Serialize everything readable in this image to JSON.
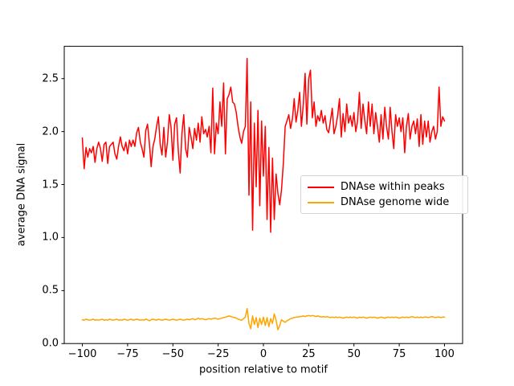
{
  "chart_data": {
    "type": "line",
    "title": "",
    "xlabel": "position relative to motif",
    "ylabel": "average DNA signal",
    "xlim": [
      -110,
      110
    ],
    "ylim": [
      0,
      2.805
    ],
    "grid": false,
    "legend_position": "center-right",
    "background_color": "#ffffff",
    "spine_color": "#000000",
    "xticks": [
      -100,
      -75,
      -50,
      -25,
      0,
      25,
      50,
      75,
      100
    ],
    "xtick_labels": [
      "−100",
      "−75",
      "−50",
      "−25",
      "0",
      "25",
      "50",
      "75",
      "100"
    ],
    "yticks": [
      0,
      0.5,
      1.0,
      1.5,
      2.0,
      2.5
    ],
    "ytick_labels": [
      "0.0",
      "0.5",
      "1.0",
      "1.5",
      "2.0",
      "2.5"
    ],
    "x": [
      -100,
      -99,
      -98,
      -97,
      -96,
      -95,
      -94,
      -93,
      -92,
      -91,
      -90,
      -89,
      -88,
      -87,
      -86,
      -85,
      -84,
      -83,
      -82,
      -81,
      -80,
      -79,
      -78,
      -77,
      -76,
      -75,
      -74,
      -73,
      -72,
      -71,
      -70,
      -69,
      -68,
      -67,
      -66,
      -65,
      -64,
      -63,
      -62,
      -61,
      -60,
      -59,
      -58,
      -57,
      -56,
      -55,
      -54,
      -53,
      -52,
      -51,
      -50,
      -49,
      -48,
      -47,
      -46,
      -45,
      -44,
      -43,
      -42,
      -41,
      -40,
      -39,
      -38,
      -37,
      -36,
      -35,
      -34,
      -33,
      -32,
      -31,
      -30,
      -29,
      -28,
      -27,
      -26,
      -25,
      -24,
      -23,
      -22,
      -21,
      -20,
      -19,
      -18,
      -17,
      -16,
      -15,
      -14,
      -13,
      -12,
      -11,
      -10,
      -9,
      -8,
      -7,
      -6,
      -5,
      -4,
      -3,
      -2,
      -1,
      0,
      1,
      2,
      3,
      4,
      5,
      6,
      7,
      8,
      9,
      10,
      11,
      12,
      13,
      14,
      15,
      16,
      17,
      18,
      19,
      20,
      21,
      22,
      23,
      24,
      25,
      26,
      27,
      28,
      29,
      30,
      31,
      32,
      33,
      34,
      35,
      36,
      37,
      38,
      39,
      40,
      41,
      42,
      43,
      44,
      45,
      46,
      47,
      48,
      49,
      50,
      51,
      52,
      53,
      54,
      55,
      56,
      57,
      58,
      59,
      60,
      61,
      62,
      63,
      64,
      65,
      66,
      67,
      68,
      69,
      70,
      71,
      72,
      73,
      74,
      75,
      76,
      77,
      78,
      79,
      80,
      81,
      82,
      83,
      84,
      85,
      86,
      87,
      88,
      89,
      90,
      91,
      92,
      93,
      94,
      95,
      96,
      97,
      98,
      99,
      100
    ],
    "series": [
      {
        "name": "DNAse within peaks",
        "color": "#ff0000",
        "linewidth": 1.5,
        "values": [
          1.94,
          1.65,
          1.85,
          1.76,
          1.84,
          1.8,
          1.86,
          1.71,
          1.84,
          1.9,
          1.84,
          1.72,
          1.88,
          1.9,
          1.7,
          1.86,
          1.88,
          1.9,
          1.79,
          1.74,
          1.86,
          1.95,
          1.86,
          1.82,
          1.9,
          1.79,
          1.92,
          1.86,
          1.92,
          1.86,
          1.99,
          2.04,
          1.9,
          1.84,
          1.76,
          2.01,
          2.07,
          1.89,
          1.67,
          1.86,
          1.93,
          2.05,
          2.14,
          1.88,
          1.78,
          2.04,
          1.76,
          1.9,
          2.16,
          2.04,
          1.73,
          2.07,
          2.13,
          1.82,
          1.61,
          1.98,
          2.16,
          1.84,
          1.76,
          2.04,
          1.95,
          1.84,
          2.03,
          1.92,
          2.08,
          1.9,
          2.14,
          1.98,
          2.02,
          1.95,
          2.05,
          1.8,
          2.41,
          1.79,
          2.08,
          1.98,
          2.28,
          2.05,
          2.46,
          1.79,
          2.31,
          2.35,
          2.42,
          2.28,
          2.26,
          2.18,
          2.05,
          1.95,
          1.89,
          2.0,
          2.05,
          2.69,
          1.4,
          2.28,
          1.07,
          2.08,
          1.48,
          2.2,
          1.3,
          2.1,
          1.58,
          2.05,
          1.17,
          1.85,
          1.05,
          1.75,
          1.17,
          1.6,
          1.42,
          1.31,
          1.45,
          1.7,
          2.05,
          2.1,
          2.16,
          2.03,
          2.12,
          2.31,
          2.09,
          2.2,
          2.37,
          2.05,
          2.25,
          2.55,
          2.07,
          2.5,
          2.58,
          2.13,
          2.28,
          2.05,
          2.15,
          2.1,
          2.2,
          2.08,
          2.15,
          2.02,
          1.99,
          2.1,
          2.22,
          1.98,
          2.05,
          2.15,
          2.31,
          1.95,
          2.17,
          2.0,
          2.26,
          2.08,
          2.15,
          2.05,
          2.18,
          2.0,
          2.1,
          2.37,
          2.03,
          2.26,
          2.1,
          1.98,
          2.28,
          2.05,
          2.26,
          1.98,
          2.18,
          2.05,
          1.9,
          2.16,
          1.93,
          2.23,
          2.05,
          1.93,
          2.23,
          2.0,
          1.84,
          2.16,
          2.05,
          2.13,
          2.0,
          2.13,
          1.8,
          2.05,
          2.17,
          1.93,
          2.05,
          2.1,
          1.98,
          2.12,
          1.86,
          2.16,
          1.88,
          2.1,
          1.95,
          2.1,
          1.9,
          2.0,
          2.05,
          1.93,
          2.0,
          2.42,
          2.05,
          2.14,
          2.1
        ]
      },
      {
        "name": "DNAse genome wide",
        "color": "#ffa500",
        "linewidth": 1.5,
        "values": [
          0.225,
          0.22,
          0.23,
          0.225,
          0.22,
          0.225,
          0.23,
          0.22,
          0.225,
          0.22,
          0.225,
          0.23,
          0.22,
          0.225,
          0.22,
          0.23,
          0.225,
          0.22,
          0.225,
          0.23,
          0.22,
          0.225,
          0.22,
          0.23,
          0.225,
          0.22,
          0.225,
          0.23,
          0.22,
          0.225,
          0.23,
          0.225,
          0.22,
          0.225,
          0.22,
          0.23,
          0.225,
          0.215,
          0.225,
          0.23,
          0.225,
          0.22,
          0.23,
          0.225,
          0.22,
          0.225,
          0.23,
          0.225,
          0.22,
          0.225,
          0.23,
          0.225,
          0.22,
          0.225,
          0.23,
          0.225,
          0.22,
          0.225,
          0.23,
          0.225,
          0.23,
          0.235,
          0.225,
          0.23,
          0.24,
          0.23,
          0.235,
          0.23,
          0.225,
          0.23,
          0.235,
          0.23,
          0.235,
          0.24,
          0.235,
          0.23,
          0.235,
          0.24,
          0.245,
          0.25,
          0.255,
          0.26,
          0.255,
          0.25,
          0.245,
          0.24,
          0.23,
          0.225,
          0.22,
          0.235,
          0.25,
          0.33,
          0.19,
          0.14,
          0.26,
          0.18,
          0.245,
          0.15,
          0.24,
          0.18,
          0.25,
          0.17,
          0.245,
          0.16,
          0.235,
          0.19,
          0.28,
          0.22,
          0.13,
          0.17,
          0.225,
          0.21,
          0.2,
          0.215,
          0.225,
          0.235,
          0.24,
          0.245,
          0.25,
          0.25,
          0.255,
          0.255,
          0.26,
          0.255,
          0.26,
          0.265,
          0.26,
          0.265,
          0.26,
          0.255,
          0.26,
          0.255,
          0.25,
          0.255,
          0.25,
          0.255,
          0.25,
          0.245,
          0.25,
          0.245,
          0.25,
          0.245,
          0.25,
          0.245,
          0.24,
          0.245,
          0.25,
          0.245,
          0.25,
          0.245,
          0.25,
          0.245,
          0.24,
          0.25,
          0.245,
          0.25,
          0.245,
          0.24,
          0.245,
          0.25,
          0.245,
          0.25,
          0.245,
          0.24,
          0.245,
          0.25,
          0.245,
          0.24,
          0.245,
          0.25,
          0.245,
          0.25,
          0.245,
          0.25,
          0.245,
          0.24,
          0.245,
          0.25,
          0.245,
          0.25,
          0.245,
          0.25,
          0.255,
          0.25,
          0.245,
          0.25,
          0.245,
          0.25,
          0.245,
          0.25,
          0.25,
          0.245,
          0.25,
          0.255,
          0.25,
          0.245,
          0.25,
          0.25,
          0.245,
          0.25,
          0.25
        ]
      }
    ]
  }
}
